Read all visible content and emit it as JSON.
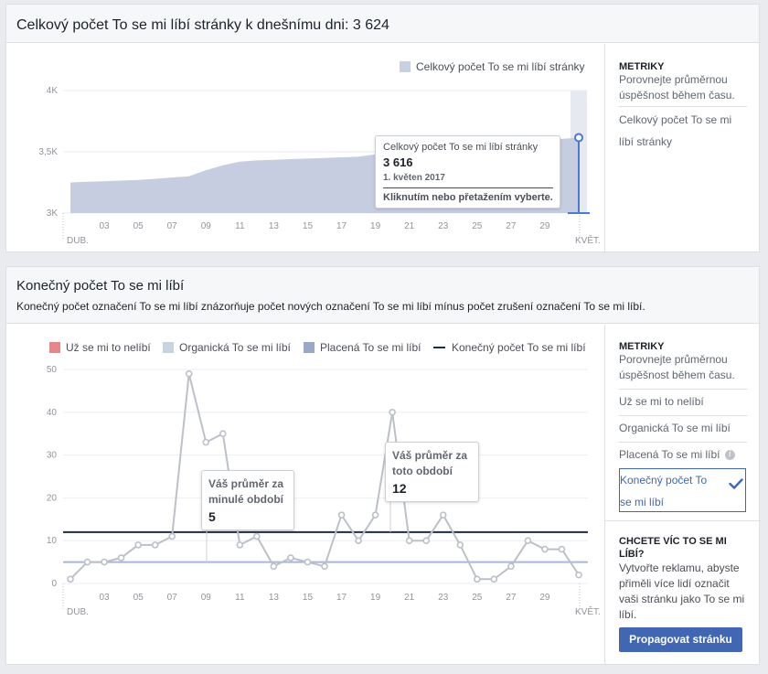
{
  "panel1": {
    "title": "Celkový počet To se mi líbí stránky k dnešnímu dni: 3 624",
    "legend_label": "Celkový počet To se mi líbí stránky",
    "tooltip": {
      "title": "Celkový počet To se mi líbí stránky",
      "value": "3 616",
      "date": "1. květen 2017",
      "hint": "Kliknutím nebo přetažením vyberte."
    },
    "side": {
      "metrics_heading": "METRIKY",
      "metrics_desc": "Porovnejte průměrnou úspěšnost během času.",
      "metric_item": "Celkový počet To se mi líbí stránky"
    }
  },
  "panel2": {
    "title": "Konečný počet To se mi líbí",
    "description": "Konečný počet označení To se mi líbí znázorňuje počet nových označení To se mi líbí mínus počet zrušení označení To se mi líbí.",
    "legend": [
      {
        "label": "Už se mi to nelíbí",
        "color": "#e4888c"
      },
      {
        "label": "Organická To se mi líbí",
        "color": "#c8d3e2"
      },
      {
        "label": "Placená To se mi líbí",
        "color": "#9aa8c8"
      },
      {
        "label": "Konečný počet To se mi líbí",
        "color": "#1c2b48"
      }
    ],
    "tooltip_prev": {
      "text": "Váš průměr za minulé období",
      "value": "5"
    },
    "tooltip_curr": {
      "text": "Váš průměr za toto období",
      "value": "12"
    },
    "side": {
      "metrics_heading": "METRIKY",
      "metrics_desc": "Porovnejte průměrnou úspěšnost během času.",
      "options": [
        "Už se mi to nelíbí",
        "Organická To se mi líbí",
        "Placená To se mi líbí",
        "Konečný počet To se mi líbí"
      ],
      "selected": "Konečný počet To se mi líbí",
      "promo_heading": "CHCETE VÍC TO SE MI LÍBÍ?",
      "promo_text": "Vytvořte reklamu, abyste přiměli více lidí označit vaši stránku jako To se mi líbí.",
      "promo_button": "Propagovat stránku"
    }
  },
  "chart_data": [
    {
      "type": "area",
      "title": "Celkový počet To se mi líbí stránky",
      "x_ticks": [
        "03",
        "05",
        "07",
        "09",
        "11",
        "13",
        "15",
        "17",
        "19",
        "21",
        "23",
        "25",
        "27",
        "29"
      ],
      "x_month_labels": [
        "DUB.",
        "KVĚT."
      ],
      "y_ticks": [
        "3K",
        "3,5K",
        "4K"
      ],
      "ylim": [
        3000,
        4000
      ],
      "series": [
        {
          "name": "Celkový počet To se mi líbí stránky",
          "x": [
            "1.4.",
            "2.4.",
            "3.4.",
            "4.4.",
            "5.4.",
            "6.4.",
            "7.4.",
            "8.4.",
            "9.4.",
            "10.4.",
            "11.4.",
            "12.4.",
            "13.4.",
            "14.4.",
            "15.4.",
            "16.4.",
            "17.4.",
            "18.4.",
            "19.4.",
            "20.4.",
            "21.4.",
            "22.4.",
            "23.4.",
            "24.4.",
            "25.4.",
            "26.4.",
            "27.4.",
            "28.4.",
            "29.4.",
            "30.4.",
            "1.5."
          ],
          "values": [
            3250,
            3255,
            3260,
            3265,
            3270,
            3280,
            3290,
            3300,
            3350,
            3390,
            3420,
            3430,
            3435,
            3440,
            3445,
            3450,
            3455,
            3460,
            3480,
            3500,
            3530,
            3540,
            3545,
            3550,
            3560,
            3570,
            3575,
            3580,
            3590,
            3605,
            3616
          ]
        }
      ],
      "highlight": {
        "x": "1.5.",
        "value": 3616
      }
    },
    {
      "type": "line",
      "title": "Konečný počet To se mi líbí",
      "x_ticks": [
        "03",
        "05",
        "07",
        "09",
        "11",
        "13",
        "15",
        "17",
        "19",
        "21",
        "23",
        "25",
        "27",
        "29"
      ],
      "x_month_labels": [
        "DUB.",
        "KVĚT."
      ],
      "y_ticks": [
        "0",
        "10",
        "20",
        "30",
        "40",
        "50"
      ],
      "ylim": [
        0,
        50
      ],
      "series": [
        {
          "name": "Konečný počet To se mi líbí",
          "x": [
            "1.4.",
            "2.4.",
            "3.4.",
            "4.4.",
            "5.4.",
            "6.4.",
            "7.4.",
            "8.4.",
            "9.4.",
            "10.4.",
            "11.4.",
            "12.4.",
            "13.4.",
            "14.4.",
            "15.4.",
            "16.4.",
            "17.4.",
            "18.4.",
            "19.4.",
            "20.4.",
            "21.4.",
            "22.4.",
            "23.4.",
            "24.4.",
            "25.4.",
            "26.4.",
            "27.4.",
            "28.4.",
            "29.4.",
            "30.4.",
            "1.5."
          ],
          "values": [
            1,
            5,
            5,
            6,
            9,
            9,
            11,
            49,
            33,
            35,
            9,
            11,
            4,
            6,
            5,
            4,
            16,
            10,
            16,
            40,
            10,
            10,
            16,
            9,
            1,
            1,
            4,
            10,
            8,
            8,
            2
          ]
        }
      ],
      "reference_lines": [
        {
          "label": "Váš průměr za minulé období",
          "value": 5
        },
        {
          "label": "Váš průměr za toto období",
          "value": 12
        }
      ]
    }
  ]
}
